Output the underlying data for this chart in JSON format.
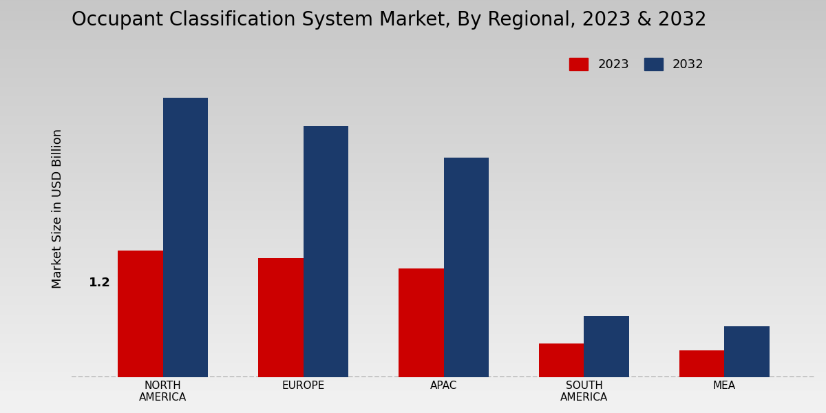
{
  "title": "Occupant Classification System Market, By Regional, 2023 & 2032",
  "ylabel": "Market Size in USD Billion",
  "categories": [
    "NORTH\nAMERICA",
    "EUROPE",
    "APAC",
    "SOUTH\nAMERICA",
    "MEA"
  ],
  "values_2023": [
    1.2,
    1.13,
    1.03,
    0.32,
    0.25
  ],
  "values_2032": [
    2.65,
    2.38,
    2.08,
    0.58,
    0.48
  ],
  "color_2023": "#cc0000",
  "color_2032": "#1b3a6b",
  "annotation_text": "1.2",
  "legend_labels": [
    "2023",
    "2032"
  ],
  "bar_width": 0.32,
  "ylim": [
    0,
    3.2
  ],
  "bg_top": "#c8c8c8",
  "bg_bottom": "#f0f0f0",
  "title_fontsize": 20,
  "axis_label_fontsize": 13,
  "tick_fontsize": 11,
  "legend_fontsize": 13,
  "dashed_line_y": 0.0
}
